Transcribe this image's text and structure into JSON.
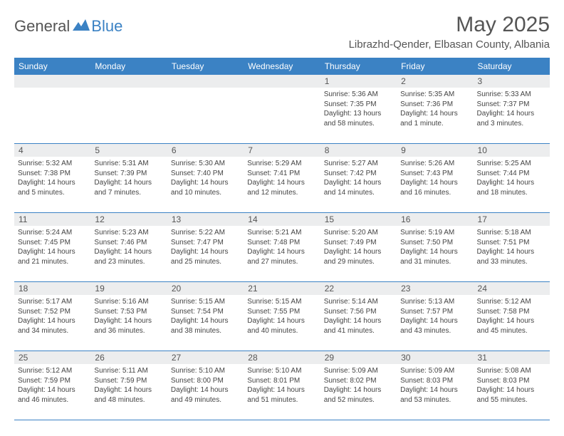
{
  "logo": {
    "general": "General",
    "blue": "Blue"
  },
  "monthTitle": "May 2025",
  "location": "Librazhd-Qender, Elbasan County, Albania",
  "colors": {
    "headerBg": "#3b82c4",
    "headerText": "#ffffff",
    "pageBg": "#ffffff",
    "dayNumBg": "#ecedee",
    "text": "#444444",
    "title": "#555555",
    "border": "#3b82c4"
  },
  "dayNames": [
    "Sunday",
    "Monday",
    "Tuesday",
    "Wednesday",
    "Thursday",
    "Friday",
    "Saturday"
  ],
  "weeks": [
    [
      {
        "n": "",
        "sr": "",
        "ss": "",
        "dl": ""
      },
      {
        "n": "",
        "sr": "",
        "ss": "",
        "dl": ""
      },
      {
        "n": "",
        "sr": "",
        "ss": "",
        "dl": ""
      },
      {
        "n": "",
        "sr": "",
        "ss": "",
        "dl": ""
      },
      {
        "n": "1",
        "sr": "Sunrise: 5:36 AM",
        "ss": "Sunset: 7:35 PM",
        "dl": "Daylight: 13 hours and 58 minutes."
      },
      {
        "n": "2",
        "sr": "Sunrise: 5:35 AM",
        "ss": "Sunset: 7:36 PM",
        "dl": "Daylight: 14 hours and 1 minute."
      },
      {
        "n": "3",
        "sr": "Sunrise: 5:33 AM",
        "ss": "Sunset: 7:37 PM",
        "dl": "Daylight: 14 hours and 3 minutes."
      }
    ],
    [
      {
        "n": "4",
        "sr": "Sunrise: 5:32 AM",
        "ss": "Sunset: 7:38 PM",
        "dl": "Daylight: 14 hours and 5 minutes."
      },
      {
        "n": "5",
        "sr": "Sunrise: 5:31 AM",
        "ss": "Sunset: 7:39 PM",
        "dl": "Daylight: 14 hours and 7 minutes."
      },
      {
        "n": "6",
        "sr": "Sunrise: 5:30 AM",
        "ss": "Sunset: 7:40 PM",
        "dl": "Daylight: 14 hours and 10 minutes."
      },
      {
        "n": "7",
        "sr": "Sunrise: 5:29 AM",
        "ss": "Sunset: 7:41 PM",
        "dl": "Daylight: 14 hours and 12 minutes."
      },
      {
        "n": "8",
        "sr": "Sunrise: 5:27 AM",
        "ss": "Sunset: 7:42 PM",
        "dl": "Daylight: 14 hours and 14 minutes."
      },
      {
        "n": "9",
        "sr": "Sunrise: 5:26 AM",
        "ss": "Sunset: 7:43 PM",
        "dl": "Daylight: 14 hours and 16 minutes."
      },
      {
        "n": "10",
        "sr": "Sunrise: 5:25 AM",
        "ss": "Sunset: 7:44 PM",
        "dl": "Daylight: 14 hours and 18 minutes."
      }
    ],
    [
      {
        "n": "11",
        "sr": "Sunrise: 5:24 AM",
        "ss": "Sunset: 7:45 PM",
        "dl": "Daylight: 14 hours and 21 minutes."
      },
      {
        "n": "12",
        "sr": "Sunrise: 5:23 AM",
        "ss": "Sunset: 7:46 PM",
        "dl": "Daylight: 14 hours and 23 minutes."
      },
      {
        "n": "13",
        "sr": "Sunrise: 5:22 AM",
        "ss": "Sunset: 7:47 PM",
        "dl": "Daylight: 14 hours and 25 minutes."
      },
      {
        "n": "14",
        "sr": "Sunrise: 5:21 AM",
        "ss": "Sunset: 7:48 PM",
        "dl": "Daylight: 14 hours and 27 minutes."
      },
      {
        "n": "15",
        "sr": "Sunrise: 5:20 AM",
        "ss": "Sunset: 7:49 PM",
        "dl": "Daylight: 14 hours and 29 minutes."
      },
      {
        "n": "16",
        "sr": "Sunrise: 5:19 AM",
        "ss": "Sunset: 7:50 PM",
        "dl": "Daylight: 14 hours and 31 minutes."
      },
      {
        "n": "17",
        "sr": "Sunrise: 5:18 AM",
        "ss": "Sunset: 7:51 PM",
        "dl": "Daylight: 14 hours and 33 minutes."
      }
    ],
    [
      {
        "n": "18",
        "sr": "Sunrise: 5:17 AM",
        "ss": "Sunset: 7:52 PM",
        "dl": "Daylight: 14 hours and 34 minutes."
      },
      {
        "n": "19",
        "sr": "Sunrise: 5:16 AM",
        "ss": "Sunset: 7:53 PM",
        "dl": "Daylight: 14 hours and 36 minutes."
      },
      {
        "n": "20",
        "sr": "Sunrise: 5:15 AM",
        "ss": "Sunset: 7:54 PM",
        "dl": "Daylight: 14 hours and 38 minutes."
      },
      {
        "n": "21",
        "sr": "Sunrise: 5:15 AM",
        "ss": "Sunset: 7:55 PM",
        "dl": "Daylight: 14 hours and 40 minutes."
      },
      {
        "n": "22",
        "sr": "Sunrise: 5:14 AM",
        "ss": "Sunset: 7:56 PM",
        "dl": "Daylight: 14 hours and 41 minutes."
      },
      {
        "n": "23",
        "sr": "Sunrise: 5:13 AM",
        "ss": "Sunset: 7:57 PM",
        "dl": "Daylight: 14 hours and 43 minutes."
      },
      {
        "n": "24",
        "sr": "Sunrise: 5:12 AM",
        "ss": "Sunset: 7:58 PM",
        "dl": "Daylight: 14 hours and 45 minutes."
      }
    ],
    [
      {
        "n": "25",
        "sr": "Sunrise: 5:12 AM",
        "ss": "Sunset: 7:59 PM",
        "dl": "Daylight: 14 hours and 46 minutes."
      },
      {
        "n": "26",
        "sr": "Sunrise: 5:11 AM",
        "ss": "Sunset: 7:59 PM",
        "dl": "Daylight: 14 hours and 48 minutes."
      },
      {
        "n": "27",
        "sr": "Sunrise: 5:10 AM",
        "ss": "Sunset: 8:00 PM",
        "dl": "Daylight: 14 hours and 49 minutes."
      },
      {
        "n": "28",
        "sr": "Sunrise: 5:10 AM",
        "ss": "Sunset: 8:01 PM",
        "dl": "Daylight: 14 hours and 51 minutes."
      },
      {
        "n": "29",
        "sr": "Sunrise: 5:09 AM",
        "ss": "Sunset: 8:02 PM",
        "dl": "Daylight: 14 hours and 52 minutes."
      },
      {
        "n": "30",
        "sr": "Sunrise: 5:09 AM",
        "ss": "Sunset: 8:03 PM",
        "dl": "Daylight: 14 hours and 53 minutes."
      },
      {
        "n": "31",
        "sr": "Sunrise: 5:08 AM",
        "ss": "Sunset: 8:03 PM",
        "dl": "Daylight: 14 hours and 55 minutes."
      }
    ]
  ]
}
